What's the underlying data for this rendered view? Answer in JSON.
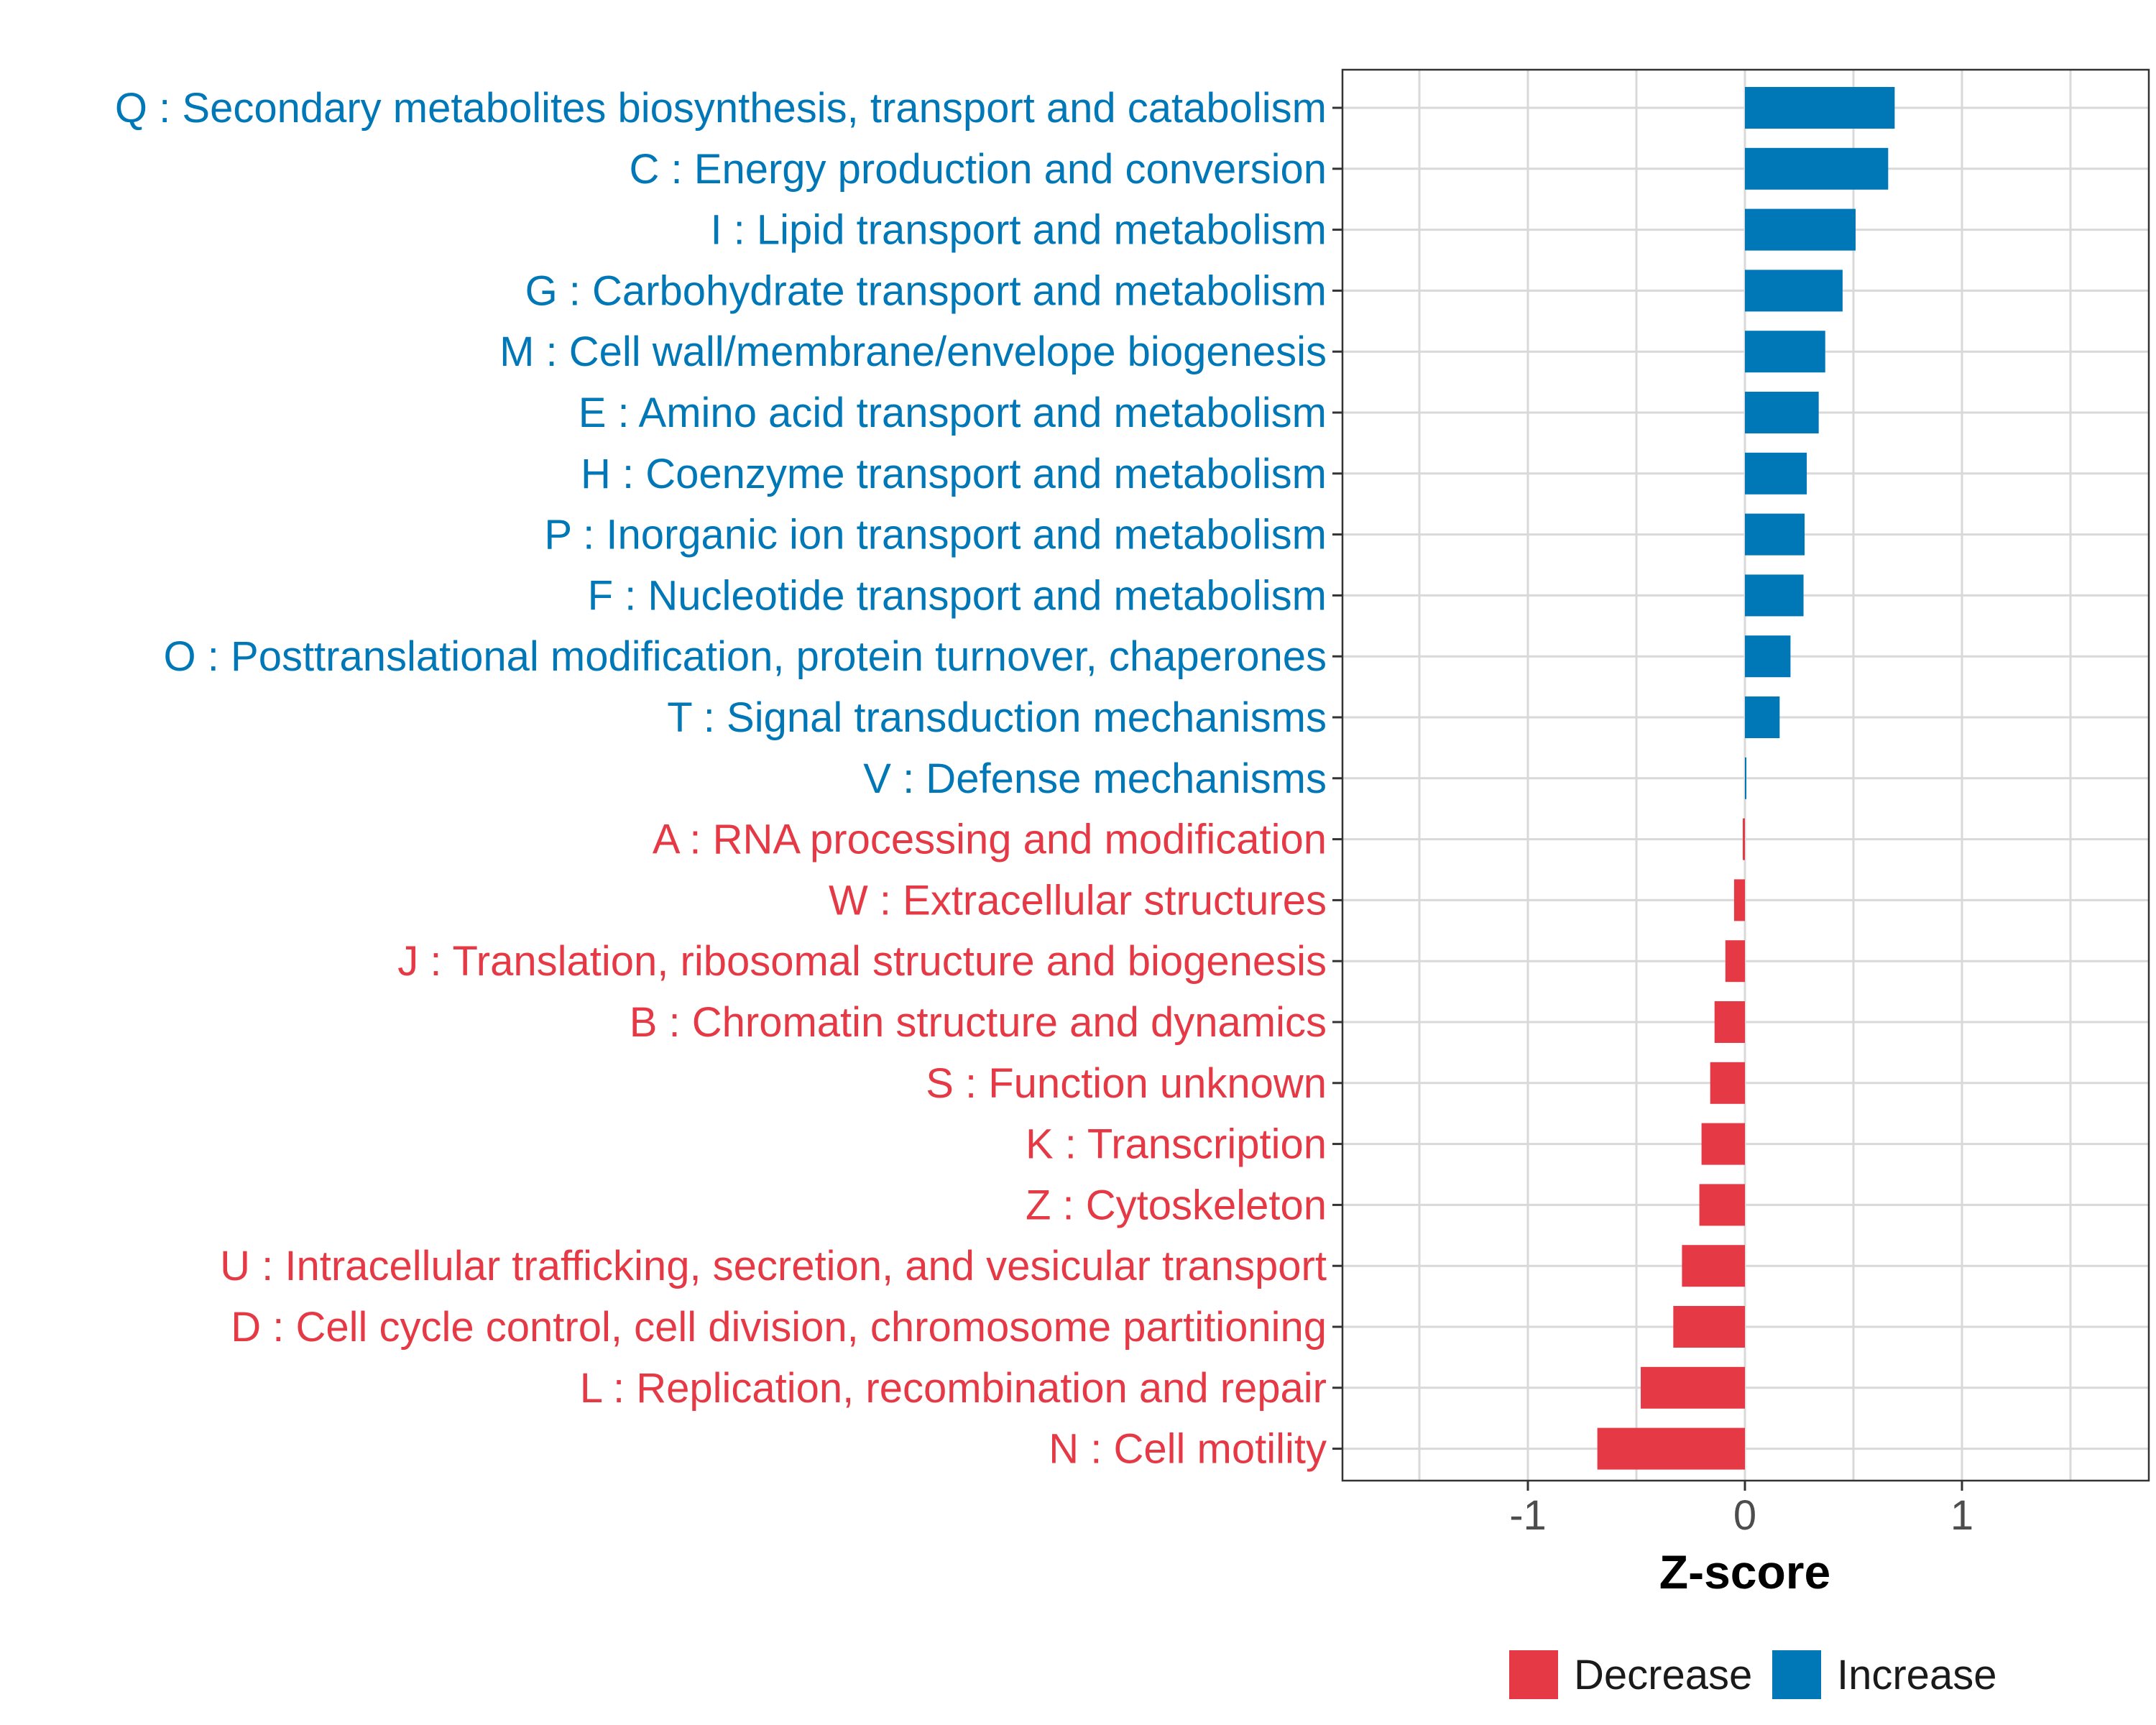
{
  "chart_data": {
    "type": "bar",
    "orientation": "horizontal",
    "xlabel": "Z-score",
    "ylabel": "",
    "xlim": [
      -1.85,
      1.85
    ],
    "xticks": [
      -1,
      0,
      1
    ],
    "xtick_labels": [
      "-1",
      "0",
      "1"
    ],
    "grid": true,
    "legend_position": "bottom",
    "legend": [
      {
        "name": "Decrease",
        "color": "#E63946"
      },
      {
        "name": "Increase",
        "color": "#0077B6"
      }
    ],
    "categories": [
      "Q : Secondary metabolites biosynthesis, transport and catabolism",
      "C : Energy production and conversion",
      "I : Lipid transport and metabolism",
      "G : Carbohydrate transport and metabolism",
      "M : Cell wall/membrane/envelope biogenesis",
      "E : Amino acid transport and metabolism",
      "H : Coenzyme transport and metabolism",
      "P : Inorganic ion transport and metabolism",
      "F : Nucleotide transport and metabolism",
      "O : Posttranslational modification, protein turnover, chaperones",
      "T : Signal transduction mechanisms",
      "V : Defense mechanisms",
      "A : RNA processing and modification",
      "W : Extracellular structures",
      "J : Translation, ribosomal structure and biogenesis",
      "B : Chromatin structure and dynamics",
      "S : Function unknown",
      "K : Transcription",
      "Z : Cytoskeleton",
      "U : Intracellular trafficking, secretion, and vesicular transport",
      "D : Cell cycle control, cell division, chromosome partitioning",
      "L : Replication, recombination and repair",
      "N : Cell motility"
    ],
    "values": [
      0.69,
      0.66,
      0.51,
      0.45,
      0.37,
      0.34,
      0.285,
      0.275,
      0.27,
      0.21,
      0.16,
      0.005,
      -0.01,
      -0.05,
      -0.09,
      -0.14,
      -0.16,
      -0.2,
      -0.21,
      -0.29,
      -0.33,
      -0.48,
      -0.68
    ],
    "groups": [
      "Increase",
      "Increase",
      "Increase",
      "Increase",
      "Increase",
      "Increase",
      "Increase",
      "Increase",
      "Increase",
      "Increase",
      "Increase",
      "Increase",
      "Decrease",
      "Decrease",
      "Decrease",
      "Decrease",
      "Decrease",
      "Decrease",
      "Decrease",
      "Decrease",
      "Decrease",
      "Decrease",
      "Decrease"
    ]
  }
}
